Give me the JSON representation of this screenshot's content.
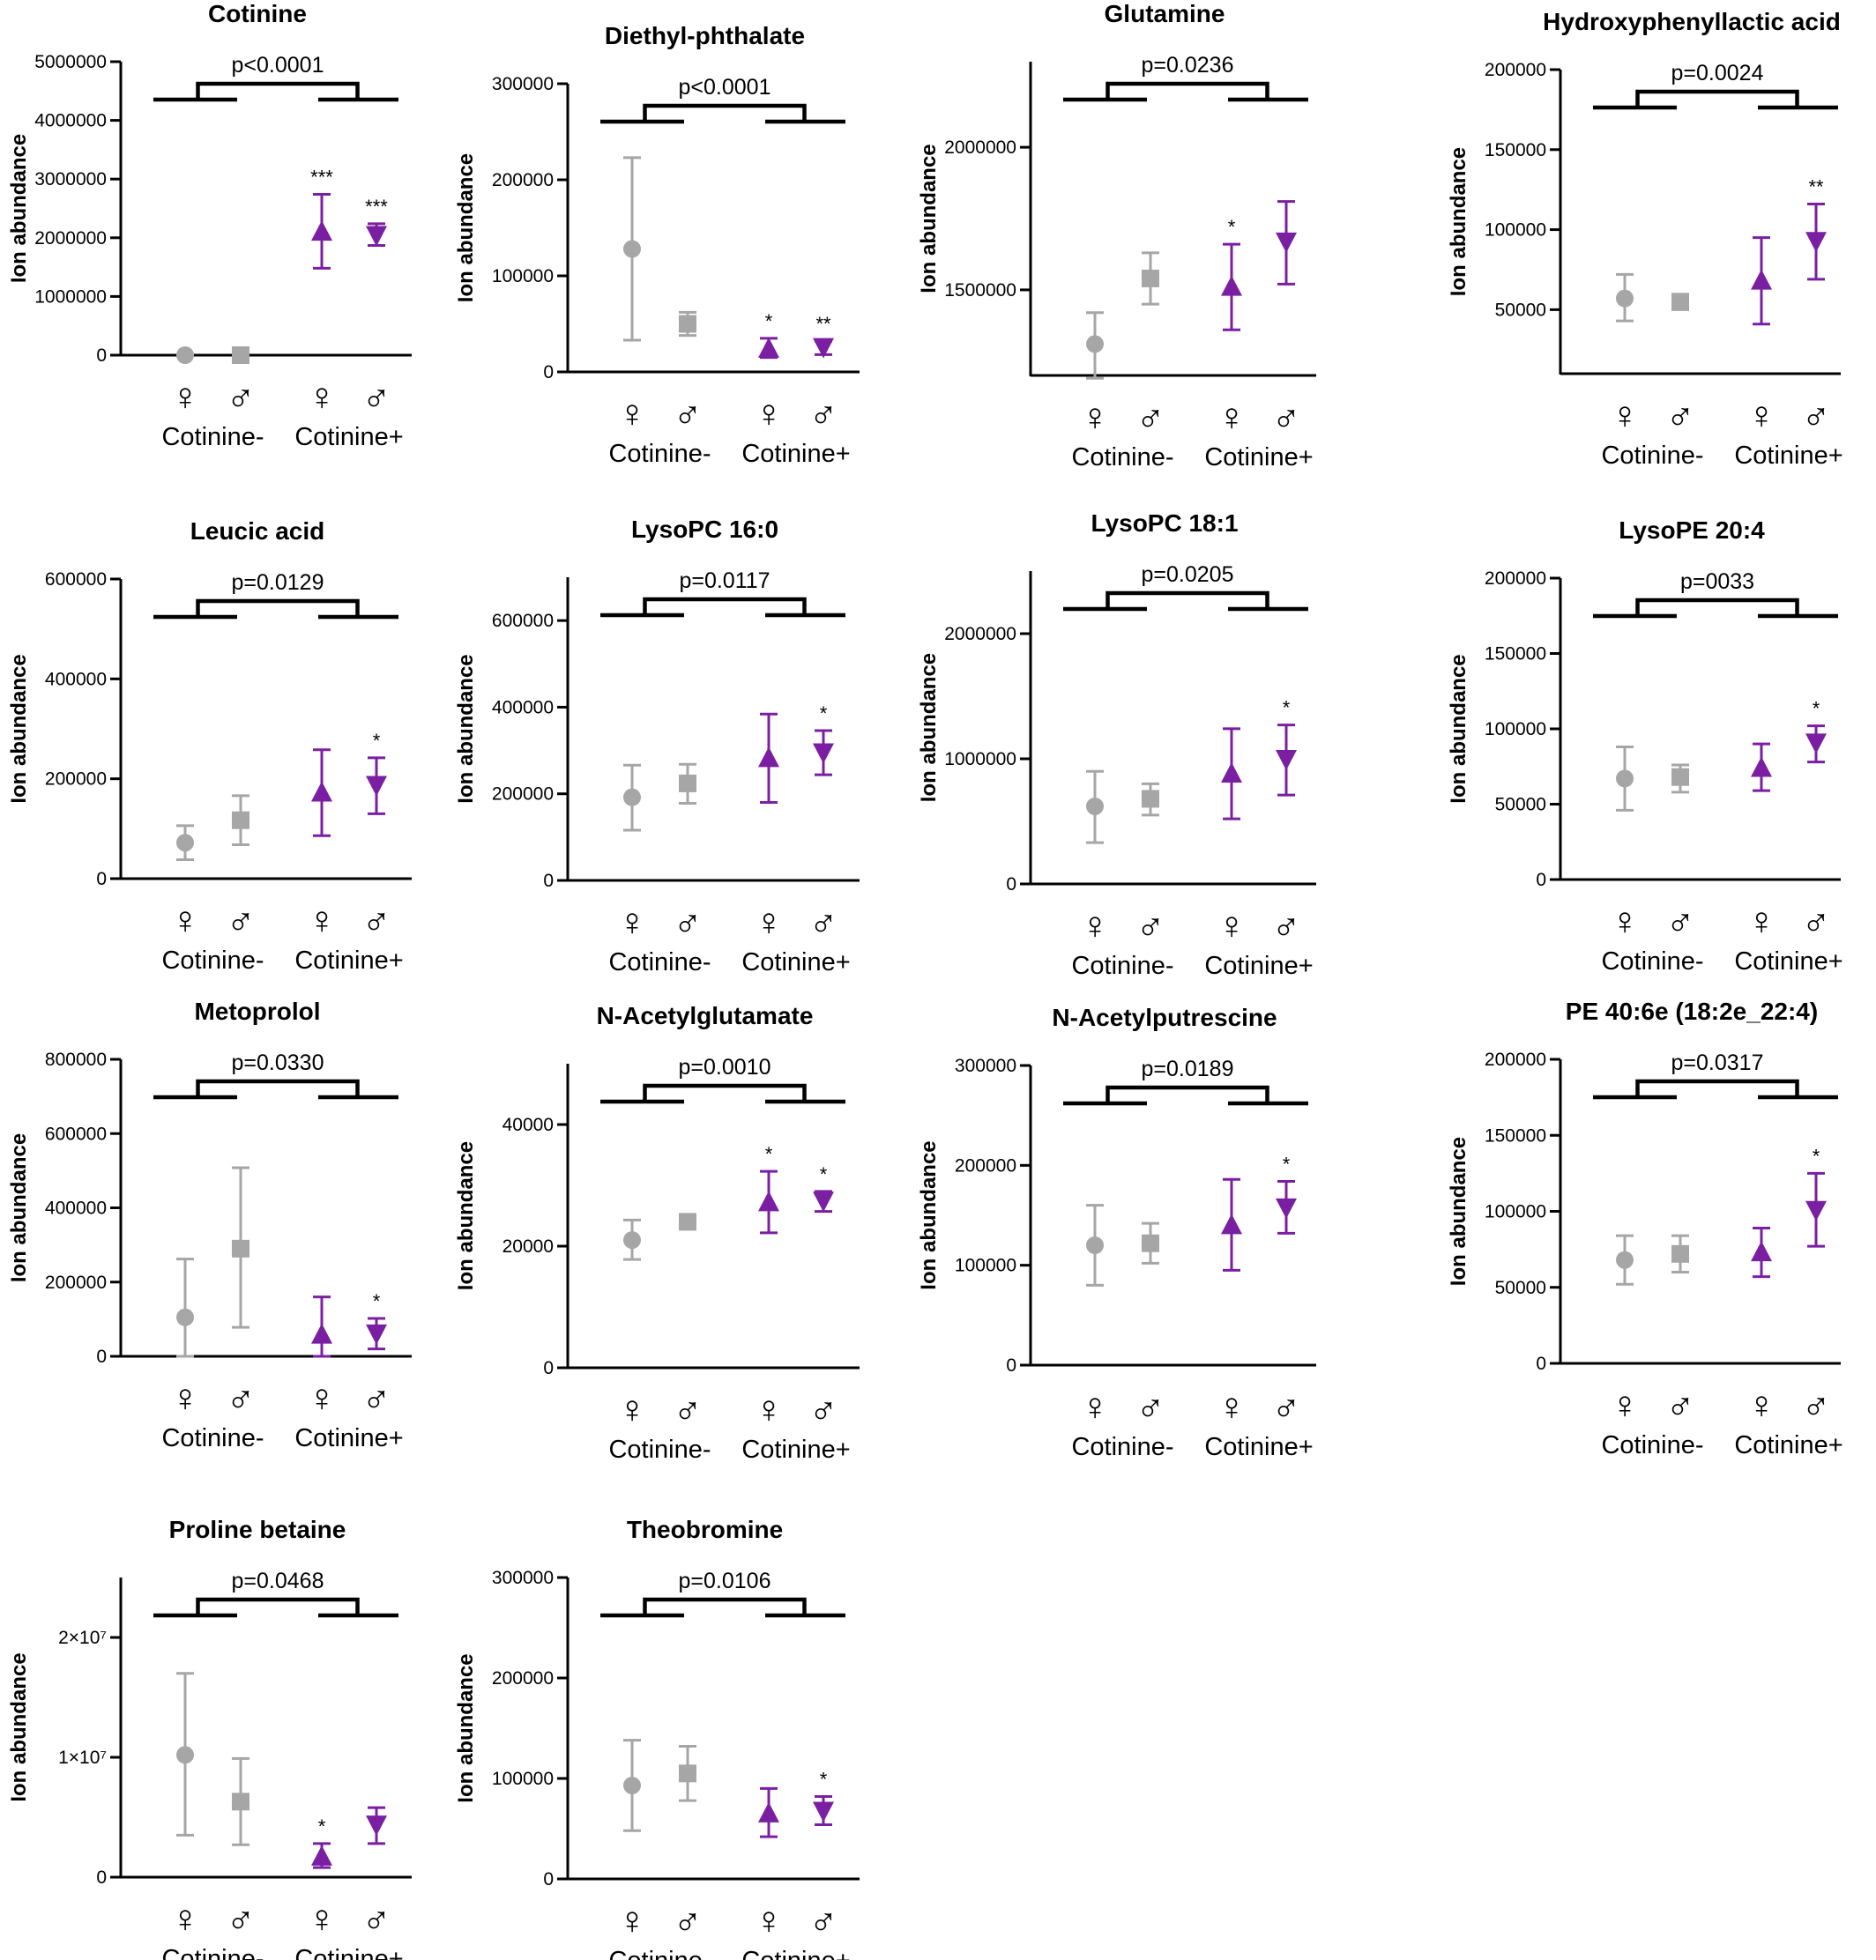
{
  "ylabel": "Ion abundance",
  "group_labels": [
    "Cotinine-",
    "Cotinine+"
  ],
  "sex_symbols": [
    "♀",
    "♂",
    "♀",
    "♂"
  ],
  "colors": {
    "negative": "#a6a6a6",
    "positive": "#7b1fa2",
    "axis": "#000000"
  },
  "marker_shapes": [
    "circle",
    "square",
    "triangle-up",
    "triangle-down"
  ],
  "chart_data": [
    {
      "type": "scatter",
      "title": "Cotinine",
      "p_value": "p<0.0001",
      "ylim": [
        0,
        5000000
      ],
      "yticks": [
        0,
        1000000,
        2000000,
        3000000,
        4000000,
        5000000
      ],
      "ytick_labels": [
        "0",
        "1000000",
        "2000000",
        "3000000",
        "4000000",
        "5000000"
      ],
      "categories": [
        "♀ Cotinine-",
        "♂ Cotinine-",
        "♀ Cotinine+",
        "♂ Cotinine+"
      ],
      "means": [
        0,
        0,
        2100000,
        2050000
      ],
      "lower": [
        0,
        0,
        1480000,
        1870000
      ],
      "upper": [
        0,
        0,
        2740000,
        2240000
      ],
      "sig": [
        "",
        "",
        "***",
        "***"
      ]
    },
    {
      "type": "scatter",
      "title": "Diethyl-phthalate",
      "p_value": "p<0.0001",
      "ylim": [
        0,
        300000
      ],
      "yticks": [
        0,
        100000,
        200000,
        300000
      ],
      "ytick_labels": [
        "0",
        "100000",
        "200000",
        "300000"
      ],
      "categories": [
        "♀ Cotinine-",
        "♂ Cotinine-",
        "♀ Cotinine+",
        "♂ Cotinine+"
      ],
      "means": [
        128000,
        50000,
        24000,
        26000
      ],
      "lower": [
        33000,
        38000,
        15000,
        18000
      ],
      "upper": [
        223000,
        62000,
        35000,
        32000
      ],
      "sig": [
        "",
        "",
        "*",
        "**"
      ]
    },
    {
      "type": "scatter",
      "title": "Glutamine",
      "p_value": "p=0.0236",
      "ylim": [
        1200000,
        2300000
      ],
      "yticks": [
        1500000,
        2000000
      ],
      "ytick_labels": [
        "1500000",
        "2000000"
      ],
      "categories": [
        "♀ Cotinine-",
        "♂ Cotinine-",
        "♀ Cotinine+",
        "♂ Cotinine+"
      ],
      "means": [
        1310000,
        1540000,
        1510000,
        1670000
      ],
      "lower": [
        1190000,
        1450000,
        1360000,
        1520000
      ],
      "upper": [
        1420000,
        1630000,
        1660000,
        1810000
      ],
      "sig": [
        "",
        "",
        "*",
        ""
      ]
    },
    {
      "type": "scatter",
      "title": "Hydroxyphenyllactic acid",
      "p_value": "p=0.0024",
      "ylim": [
        10000,
        200000
      ],
      "yticks": [
        50000,
        100000,
        150000,
        200000
      ],
      "ytick_labels": [
        "50000",
        "100000",
        "150000",
        "200000"
      ],
      "categories": [
        "♀ Cotinine-",
        "♂ Cotinine-",
        "♀ Cotinine+",
        "♂ Cotinine+"
      ],
      "means": [
        57000,
        55000,
        68000,
        93000
      ],
      "lower": [
        43000,
        50000,
        41000,
        69000
      ],
      "upper": [
        72000,
        59000,
        95000,
        116000
      ],
      "sig": [
        "",
        "",
        "",
        "**"
      ]
    },
    {
      "type": "scatter",
      "title": "Leucic acid",
      "p_value": "p=0.0129",
      "ylim": [
        0,
        600000
      ],
      "yticks": [
        0,
        200000,
        400000,
        600000
      ],
      "ytick_labels": [
        "0",
        "200000",
        "400000",
        "600000"
      ],
      "categories": [
        "♀ Cotinine-",
        "♂ Cotinine-",
        "♀ Cotinine+",
        "♂ Cotinine+"
      ],
      "means": [
        72000,
        117000,
        172000,
        188000
      ],
      "lower": [
        38000,
        68000,
        86000,
        130000
      ],
      "upper": [
        106000,
        166000,
        258000,
        242000
      ],
      "sig": [
        "",
        "",
        "",
        "*"
      ]
    },
    {
      "type": "scatter",
      "title": "LysoPC 16:0",
      "p_value": "p=0.0117",
      "ylim": [
        0,
        700000
      ],
      "yticks": [
        0,
        200000,
        400000,
        600000
      ],
      "ytick_labels": [
        "0",
        "200000",
        "400000",
        "600000"
      ],
      "categories": [
        "♀ Cotinine-",
        "♂ Cotinine-",
        "♀ Cotinine+",
        "♂ Cotinine+"
      ],
      "means": [
        192000,
        224000,
        282000,
        296000
      ],
      "lower": [
        116000,
        178000,
        180000,
        244000
      ],
      "upper": [
        266000,
        268000,
        384000,
        346000
      ],
      "sig": [
        "",
        "",
        "",
        "*"
      ]
    },
    {
      "type": "scatter",
      "title": "LysoPC 18:1",
      "p_value": "p=0.0205",
      "ylim": [
        0,
        2500000
      ],
      "yticks": [
        0,
        1000000,
        2000000
      ],
      "ytick_labels": [
        "0",
        "1000000",
        "2000000"
      ],
      "categories": [
        "♀ Cotinine-",
        "♂ Cotinine-",
        "♀ Cotinine+",
        "♂ Cotinine+"
      ],
      "means": [
        620000,
        680000,
        880000,
        1000000
      ],
      "lower": [
        330000,
        550000,
        520000,
        710000
      ],
      "upper": [
        900000,
        800000,
        1240000,
        1270000
      ],
      "sig": [
        "",
        "",
        "",
        "*"
      ]
    },
    {
      "type": "scatter",
      "title": "LysoPE 20:4",
      "p_value": "p=0033",
      "ylim": [
        0,
        200000
      ],
      "yticks": [
        0,
        50000,
        100000,
        150000,
        200000
      ],
      "ytick_labels": [
        "0",
        "50000",
        "100000",
        "150000",
        "200000"
      ],
      "categories": [
        "♀ Cotinine-",
        "♂ Cotinine-",
        "♀ Cotinine+",
        "♂ Cotinine+"
      ],
      "means": [
        67000,
        68000,
        74000,
        91000
      ],
      "lower": [
        46000,
        58000,
        59000,
        78000
      ],
      "upper": [
        88000,
        76000,
        90000,
        102000
      ],
      "sig": [
        "",
        "",
        "",
        "*"
      ]
    },
    {
      "type": "scatter",
      "title": "Metoprolol",
      "p_value": "p=0.0330",
      "ylim": [
        0,
        800000
      ],
      "yticks": [
        0,
        200000,
        400000,
        600000,
        800000
      ],
      "ytick_labels": [
        "0",
        "200000",
        "400000",
        "600000",
        "800000"
      ],
      "categories": [
        "♀ Cotinine-",
        "♂ Cotinine-",
        "♀ Cotinine+",
        "♂ Cotinine+"
      ],
      "means": [
        105000,
        290000,
        58000,
        62000
      ],
      "lower": [
        0,
        78000,
        0,
        20000
      ],
      "upper": [
        262000,
        508000,
        160000,
        102000
      ],
      "sig": [
        "",
        "",
        "",
        "*"
      ]
    },
    {
      "type": "scatter",
      "title": "N-Acetylglutamate",
      "p_value": "p=0.0010",
      "ylim": [
        0,
        50000
      ],
      "yticks": [
        0,
        20000,
        40000
      ],
      "ytick_labels": [
        "0",
        "20000",
        "40000"
      ],
      "categories": [
        "♀ Cotinine-",
        "♂ Cotinine-",
        "♀ Cotinine+",
        "♂ Cotinine+"
      ],
      "means": [
        21000,
        24000,
        27200,
        27500
      ],
      "lower": [
        17800,
        22800,
        22200,
        25700
      ],
      "upper": [
        24300,
        25200,
        32300,
        29000
      ],
      "sig": [
        "",
        "",
        "*",
        "*"
      ]
    },
    {
      "type": "scatter",
      "title": "N-Acetylputrescine",
      "p_value": "p=0.0189",
      "ylim": [
        0,
        300000
      ],
      "yticks": [
        0,
        100000,
        200000,
        300000
      ],
      "ytick_labels": [
        "0",
        "100000",
        "200000",
        "300000"
      ],
      "categories": [
        "♀ Cotinine-",
        "♂ Cotinine-",
        "♀ Cotinine+",
        "♂ Cotinine+"
      ],
      "means": [
        120000,
        122000,
        140000,
        158000
      ],
      "lower": [
        80000,
        102000,
        95000,
        132000
      ],
      "upper": [
        160000,
        142000,
        186000,
        184000
      ],
      "sig": [
        "",
        "",
        "",
        "*"
      ]
    },
    {
      "type": "scatter",
      "title": "PE 40:6e (18:2e_22:4)",
      "p_value": "p=0.0317",
      "ylim": [
        0,
        200000
      ],
      "yticks": [
        0,
        50000,
        100000,
        150000,
        200000
      ],
      "ytick_labels": [
        "0",
        "50000",
        "100000",
        "150000",
        "200000"
      ],
      "categories": [
        "♀ Cotinine-",
        "♂ Cotinine-",
        "♀ Cotinine+",
        "♂ Cotinine+"
      ],
      "means": [
        68000,
        72000,
        73000,
        101000
      ],
      "lower": [
        52000,
        60000,
        57000,
        77000
      ],
      "upper": [
        84000,
        84000,
        89000,
        125000
      ],
      "sig": [
        "",
        "",
        "",
        "*"
      ]
    },
    {
      "type": "scatter",
      "title": "Proline betaine",
      "p_value": "p=0.0468",
      "ylim": [
        0,
        25000000
      ],
      "yticks": [
        0,
        10000000,
        20000000
      ],
      "ytick_labels": [
        "0",
        "1×10⁷",
        "2×10⁷"
      ],
      "categories": [
        "♀ Cotinine-",
        "♂ Cotinine-",
        "♀ Cotinine+",
        "♂ Cotinine+"
      ],
      "means": [
        10200000,
        6300000,
        1700000,
        4400000
      ],
      "lower": [
        3500000,
        2700000,
        800000,
        2800000
      ],
      "upper": [
        17000000,
        9900000,
        2800000,
        5800000
      ],
      "sig": [
        "",
        "",
        "*",
        ""
      ]
    },
    {
      "type": "scatter",
      "title": "Theobromine",
      "p_value": "p=0.0106",
      "ylim": [
        0,
        300000
      ],
      "yticks": [
        0,
        100000,
        200000,
        300000
      ],
      "ytick_labels": [
        "0",
        "100000",
        "200000",
        "300000"
      ],
      "categories": [
        "♀ Cotinine-",
        "♂ Cotinine-",
        "♀ Cotinine+",
        "♂ Cotinine+"
      ],
      "means": [
        93000,
        105000,
        65000,
        68000
      ],
      "lower": [
        48000,
        78000,
        42000,
        54000
      ],
      "upper": [
        138000,
        132000,
        90000,
        82000
      ],
      "sig": [
        "",
        "",
        "",
        "*"
      ]
    }
  ]
}
